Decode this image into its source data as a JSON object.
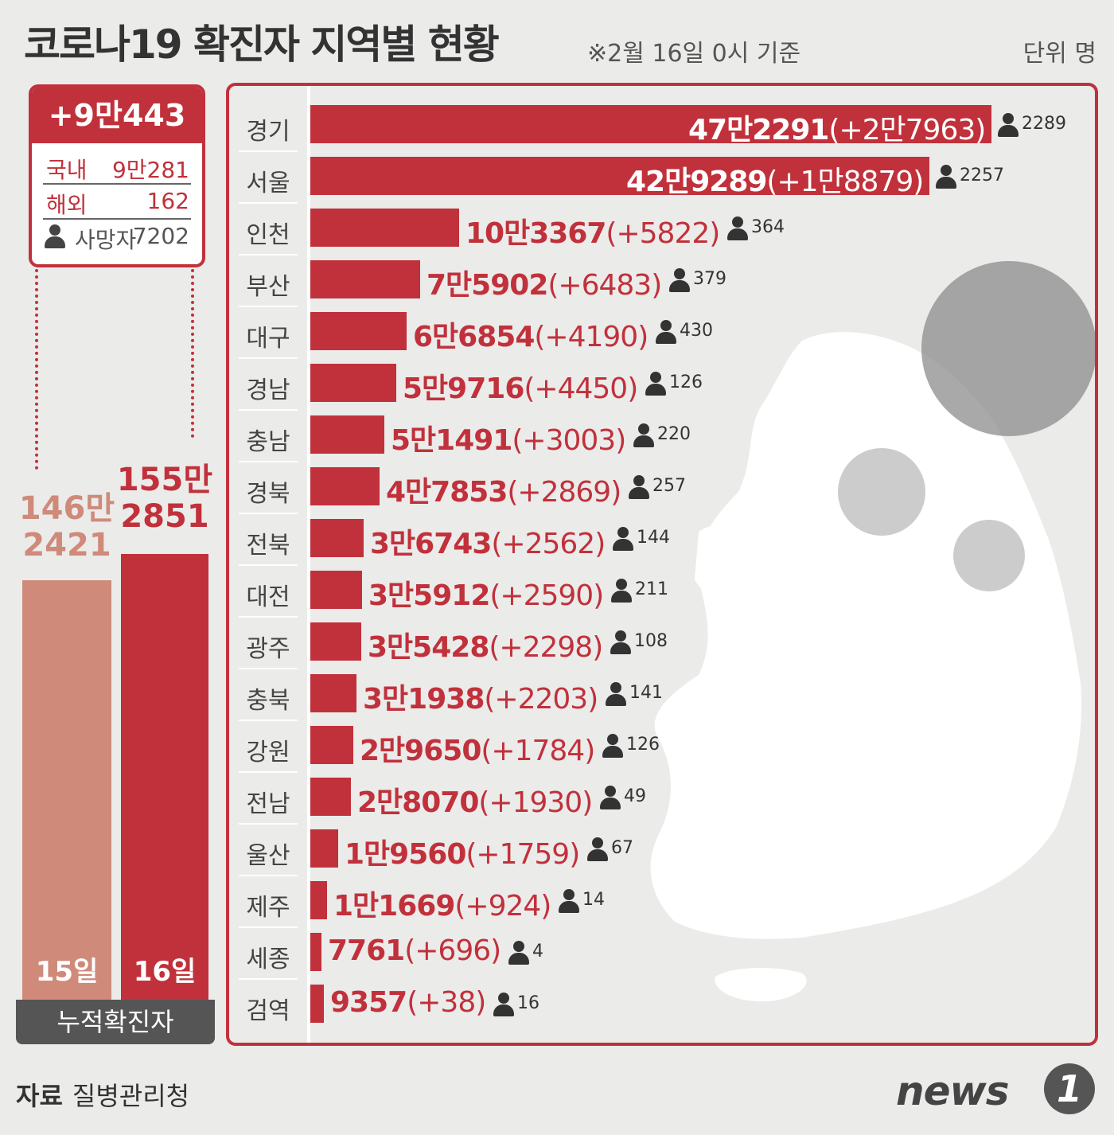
{
  "header": {
    "title": "코로나19 확진자 지역별 현황",
    "subtitle": "※2월 16일 0시 기준",
    "unit": "단위 명"
  },
  "summary": {
    "total_new": "+9만443",
    "rows": [
      {
        "label": "국내",
        "value": "9만281"
      },
      {
        "label": "해외",
        "value": "162"
      },
      {
        "label": "사망자",
        "value": "7202"
      }
    ]
  },
  "cumulative": {
    "caption": "누적확진자",
    "bars": [
      {
        "day": "15일",
        "label_line1": "146만",
        "label_line2": "2421",
        "value": 1462421,
        "color": "#cf8a7a",
        "text_color": "#cf8a7a"
      },
      {
        "day": "16일",
        "label_line1": "155만",
        "label_line2": "2851",
        "value": 1552851,
        "color": "#c1313b",
        "text_color": "#c1313b"
      }
    ]
  },
  "chart_data": {
    "type": "bar",
    "title": "코로나19 확진자 지역별 현황",
    "categories": [
      "경기",
      "서울",
      "인천",
      "부산",
      "대구",
      "경남",
      "충남",
      "경북",
      "전북",
      "대전",
      "광주",
      "충북",
      "강원",
      "전남",
      "울산",
      "제주",
      "세종",
      "검역"
    ],
    "series": [
      {
        "name": "",
        "values": [
          472291,
          429289,
          103367,
          75902,
          66854,
          59716,
          51491,
          47853,
          36743,
          35912,
          35428,
          31938,
          29650,
          28070,
          19560,
          11669,
          7761,
          9357
        ]
      }
    ],
    "value_labels": [
      "47만2291",
      "42만9289",
      "10만3367",
      "7만5902",
      "6만6854",
      "5만9716",
      "5만1491",
      "4만7853",
      "3만6743",
      "3만5912",
      "3만5428",
      "3만1938",
      "2만9650",
      "2만8070",
      "1만9560",
      "1만1669",
      "7761",
      "9357"
    ],
    "increase_labels": [
      "(+2만7963)",
      "(+1만8879)",
      "(+5822)",
      "(+6483)",
      "(+4190)",
      "(+4450)",
      "(+3003)",
      "(+2869)",
      "(+2562)",
      "(+2590)",
      "(+2298)",
      "(+2203)",
      "(+1784)",
      "(+1930)",
      "(+1759)",
      "(+924)",
      "(+696)",
      "(+38)"
    ],
    "deaths": [
      "2289",
      "2257",
      "364",
      "379",
      "430",
      "126",
      "220",
      "257",
      "144",
      "211",
      "108",
      "141",
      "126",
      "49",
      "67",
      "14",
      "4",
      "16"
    ],
    "xlim": [
      0,
      480000
    ],
    "orientation": "horizontal",
    "bar_color": "#c1313b"
  },
  "footer": {
    "source_label": "자료",
    "source": "질병관리청",
    "logo_word": "news",
    "logo_mark": "1"
  }
}
